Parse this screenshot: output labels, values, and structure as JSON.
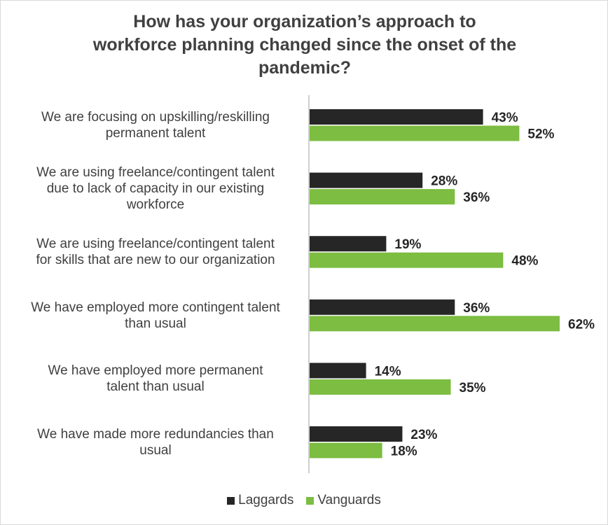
{
  "title_lines": [
    "How has your organization’s approach to",
    "workforce planning changed since the onset of the",
    "pandemic?"
  ],
  "chart_data": {
    "type": "bar",
    "orientation": "horizontal",
    "title": "How has your organization’s approach to workforce planning changed since the onset of the pandemic?",
    "categories": [
      [
        "We are focusing on upskilling/reskilling",
        "permanent talent"
      ],
      [
        "We are using freelance/contingent talent",
        "due to lack of capacity in our existing",
        "workforce"
      ],
      [
        "We are using freelance/contingent talent",
        "for skills that are new to our organization"
      ],
      [
        "We have employed more contingent talent",
        "than usual"
      ],
      [
        "We have employed more permanent",
        "talent than usual"
      ],
      [
        "We have made more redundancies than",
        "usual"
      ]
    ],
    "series": [
      {
        "name": "Laggards",
        "color": "#262626",
        "values": [
          43,
          28,
          19,
          36,
          14,
          23
        ],
        "labels": [
          "43%",
          "28%",
          "19%",
          "36%",
          "14%",
          "23%"
        ]
      },
      {
        "name": "Vanguards",
        "color": "#7cbd42",
        "values": [
          52,
          36,
          48,
          62,
          35,
          18
        ],
        "labels": [
          "52%",
          "36%",
          "48%",
          "62%",
          "35%",
          "18%"
        ]
      }
    ],
    "xlim": [
      0,
      70
    ],
    "grid": false,
    "legend_position": "bottom",
    "axis_line_color": "#bfbfbf"
  }
}
